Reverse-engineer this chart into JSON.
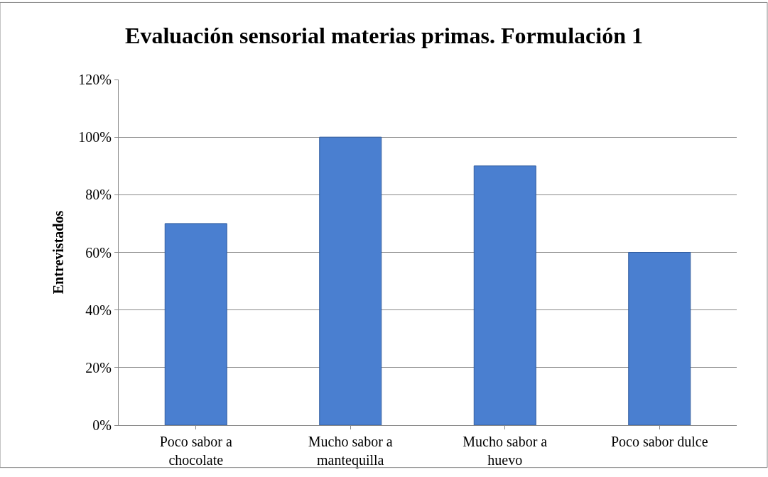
{
  "chart_data": {
    "type": "bar",
    "title": "Evaluación sensorial materias primas. Formulación 1",
    "ylabel": "Entrevistados",
    "categories": [
      "Poco sabor a chocolate",
      "Mucho sabor a mantequilla",
      "Mucho sabor a huevo",
      "Poco sabor dulce"
    ],
    "values": [
      70,
      100,
      90,
      60
    ],
    "color": "#4a7fd0",
    "ylim": [
      0,
      120
    ],
    "yticks": [
      {
        "value": 0,
        "label": "0%"
      },
      {
        "value": 20,
        "label": "20%"
      },
      {
        "value": 40,
        "label": "40%"
      },
      {
        "value": 60,
        "label": "60%"
      },
      {
        "value": 80,
        "label": "80%"
      },
      {
        "value": 100,
        "label": "100%"
      },
      {
        "value": 120,
        "label": "120%"
      }
    ],
    "grid": "y"
  }
}
